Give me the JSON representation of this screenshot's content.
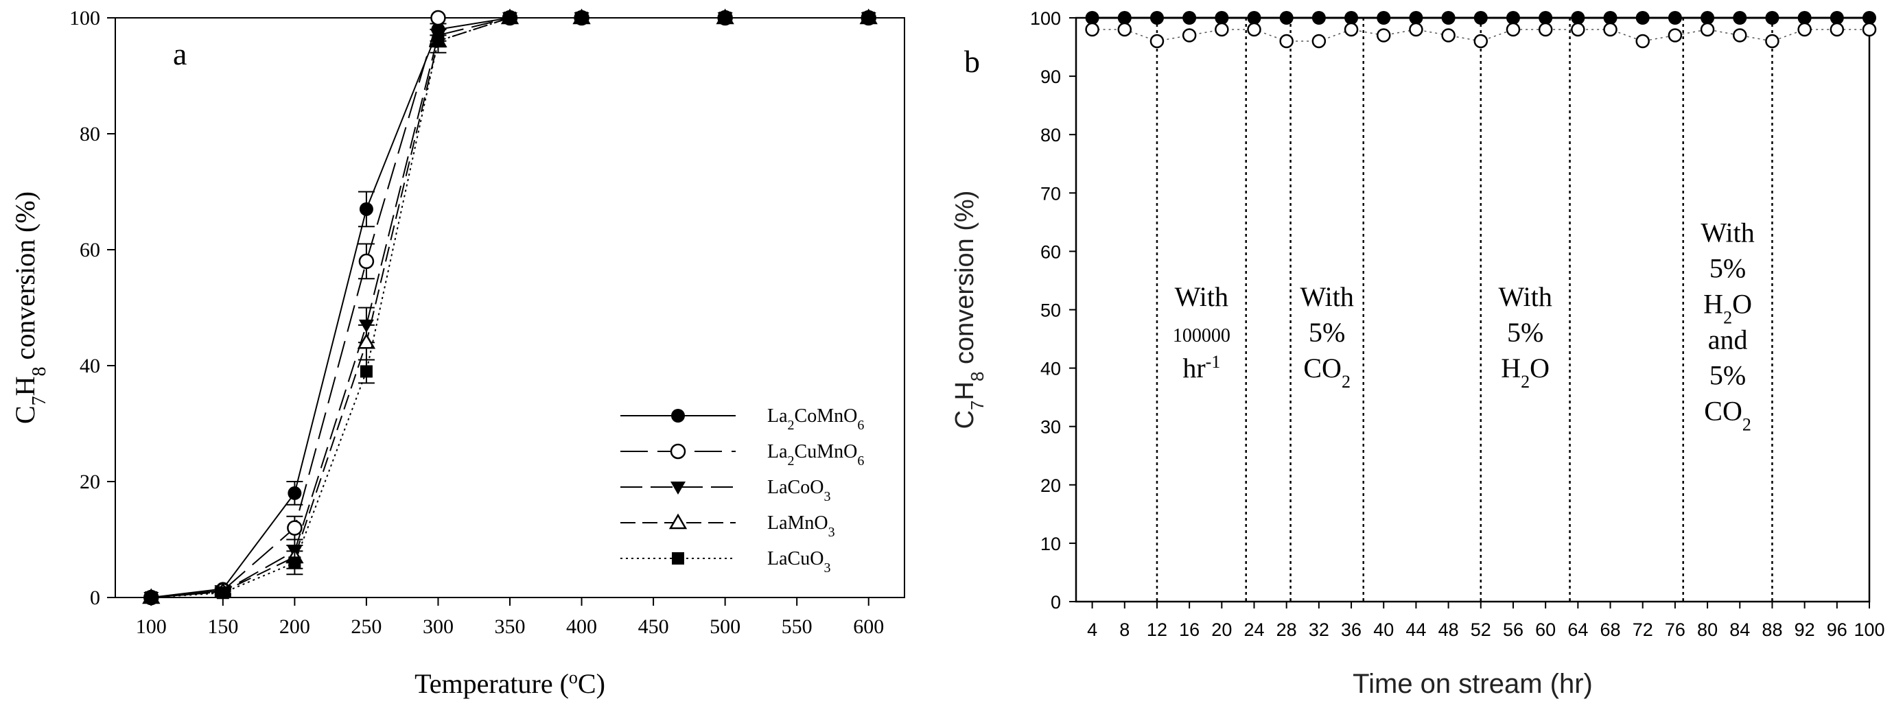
{
  "figure": {
    "panels": [
      "a",
      "b"
    ]
  },
  "chart_data": [
    {
      "panel": "a",
      "type": "line",
      "title": "",
      "xlabel": "Temperature (",
      "xlabel_sup": "o",
      "xlabel_tail": "C)",
      "ylabel_parts": [
        "C",
        "7",
        "H",
        "8",
        " conversion (%)"
      ],
      "xlim": [
        75,
        625
      ],
      "ylim": [
        0,
        100
      ],
      "xticks": [
        100,
        150,
        200,
        250,
        300,
        350,
        400,
        450,
        500,
        550,
        600
      ],
      "yticks": [
        0,
        20,
        40,
        60,
        80,
        100
      ],
      "grid": false,
      "legend_position": "bottom-right",
      "series": [
        {
          "name": "La2CoMnO6",
          "label_parts": [
            "La",
            "2",
            "CoMnO",
            "6"
          ],
          "marker": "filled-circle",
          "dash": "solid",
          "x": [
            100,
            150,
            200,
            250,
            300,
            350,
            400,
            500,
            600
          ],
          "y": [
            0,
            1.5,
            18,
            67,
            98,
            100,
            100,
            100,
            100
          ],
          "err": [
            0,
            0.5,
            2,
            3,
            1,
            0,
            0,
            0,
            0
          ]
        },
        {
          "name": "La2CuMnO6",
          "label_parts": [
            "La",
            "2",
            "CuMnO",
            "6"
          ],
          "marker": "open-circle",
          "dash": "long-dash",
          "x": [
            100,
            150,
            200,
            250,
            300,
            350,
            400,
            500,
            600
          ],
          "y": [
            0,
            1.2,
            12,
            58,
            100,
            100,
            100,
            100,
            100
          ],
          "err": [
            0,
            0.5,
            2,
            3,
            0,
            0,
            0,
            0,
            0
          ]
        },
        {
          "name": "LaCoO3",
          "label_parts": [
            "LaCoO",
            "3"
          ],
          "marker": "filled-triangle-down",
          "dash": "long-dash-2",
          "x": [
            100,
            150,
            200,
            250,
            300,
            350,
            400,
            500,
            600
          ],
          "y": [
            0,
            1.0,
            8,
            47,
            97,
            100,
            100,
            100,
            100
          ],
          "err": [
            0,
            0.5,
            2,
            3,
            1,
            0,
            0,
            0,
            0
          ]
        },
        {
          "name": "LaMnO3",
          "label_parts": [
            "LaMnO",
            "3"
          ],
          "marker": "open-triangle-up",
          "dash": "medium-dash",
          "x": [
            100,
            150,
            200,
            250,
            300,
            350,
            400,
            500,
            600
          ],
          "y": [
            0,
            1.0,
            7,
            44,
            96,
            100,
            100,
            100,
            100
          ],
          "err": [
            0,
            0.5,
            2,
            3,
            1,
            0,
            0,
            0,
            0
          ]
        },
        {
          "name": "LaCuO3",
          "label_parts": [
            "LaCuO",
            "3"
          ],
          "marker": "filled-square",
          "dash": "dotted",
          "x": [
            100,
            150,
            200,
            250,
            300,
            350,
            400,
            500,
            600
          ],
          "y": [
            0,
            0.8,
            6,
            39,
            96,
            100,
            100,
            100,
            100
          ],
          "err": [
            0,
            0.5,
            2,
            2,
            2,
            0,
            0,
            0,
            0
          ]
        }
      ]
    },
    {
      "panel": "b",
      "type": "line",
      "title": "",
      "xlabel": "Time on stream (hr)",
      "ylabel_parts": [
        "C",
        "7",
        "H",
        "8",
        " conversion (%)"
      ],
      "xlim": [
        2,
        100
      ],
      "ylim": [
        0,
        100
      ],
      "xticks": [
        4,
        8,
        12,
        16,
        20,
        24,
        28,
        32,
        36,
        40,
        44,
        48,
        52,
        56,
        60,
        64,
        68,
        72,
        76,
        80,
        84,
        88,
        92,
        96,
        100
      ],
      "yticks": [
        0,
        10,
        20,
        30,
        40,
        50,
        60,
        70,
        80,
        90,
        100
      ],
      "grid": false,
      "series": [
        {
          "name": "filled",
          "marker": "filled-circle",
          "dash": "solid",
          "x": [
            4,
            8,
            12,
            16,
            20,
            24,
            28,
            32,
            36,
            40,
            44,
            48,
            52,
            56,
            60,
            64,
            68,
            72,
            76,
            80,
            84,
            88,
            92,
            96,
            100
          ],
          "y": [
            100,
            100,
            100,
            100,
            100,
            100,
            100,
            100,
            100,
            100,
            100,
            100,
            100,
            100,
            100,
            100,
            100,
            100,
            100,
            100,
            100,
            100,
            100,
            100,
            100
          ]
        },
        {
          "name": "open",
          "marker": "open-circle",
          "dash": "dotted",
          "x": [
            4,
            8,
            12,
            16,
            20,
            24,
            28,
            32,
            36,
            40,
            44,
            48,
            52,
            56,
            60,
            64,
            68,
            72,
            76,
            80,
            84,
            88,
            92,
            96,
            100
          ],
          "y": [
            98,
            98,
            96,
            97,
            98,
            98,
            96,
            96,
            98,
            97,
            98,
            97,
            96,
            98,
            98,
            98,
            98,
            96,
            97,
            98,
            97,
            96,
            98,
            98,
            98
          ]
        }
      ],
      "vlines": [
        12,
        23,
        28.5,
        37.5,
        52,
        63,
        77,
        88
      ],
      "annotations": [
        {
          "x_center": 17.5,
          "y_top": 53,
          "lines": [
            {
              "t": "With"
            },
            {
              "t": "100000",
              "small": true
            },
            {
              "t": "hr",
              "sup": "-1"
            }
          ]
        },
        {
          "x_center": 33,
          "y_top": 53,
          "lines": [
            {
              "t": "With"
            },
            {
              "t": "5%"
            },
            {
              "t": "CO",
              "sub": "2"
            }
          ]
        },
        {
          "x_center": 57.5,
          "y_top": 53,
          "lines": [
            {
              "t": "With"
            },
            {
              "t": "5%"
            },
            {
              "t": "H",
              "sub": "2",
              "tail": "O"
            }
          ]
        },
        {
          "x_center": 82.5,
          "y_top": 64,
          "lines": [
            {
              "t": "With"
            },
            {
              "t": "5%"
            },
            {
              "t": "H",
              "sub": "2",
              "tail": "O"
            },
            {
              "t": "and"
            },
            {
              "t": "5%"
            },
            {
              "t": "CO",
              "sub": "2"
            }
          ]
        }
      ]
    }
  ]
}
